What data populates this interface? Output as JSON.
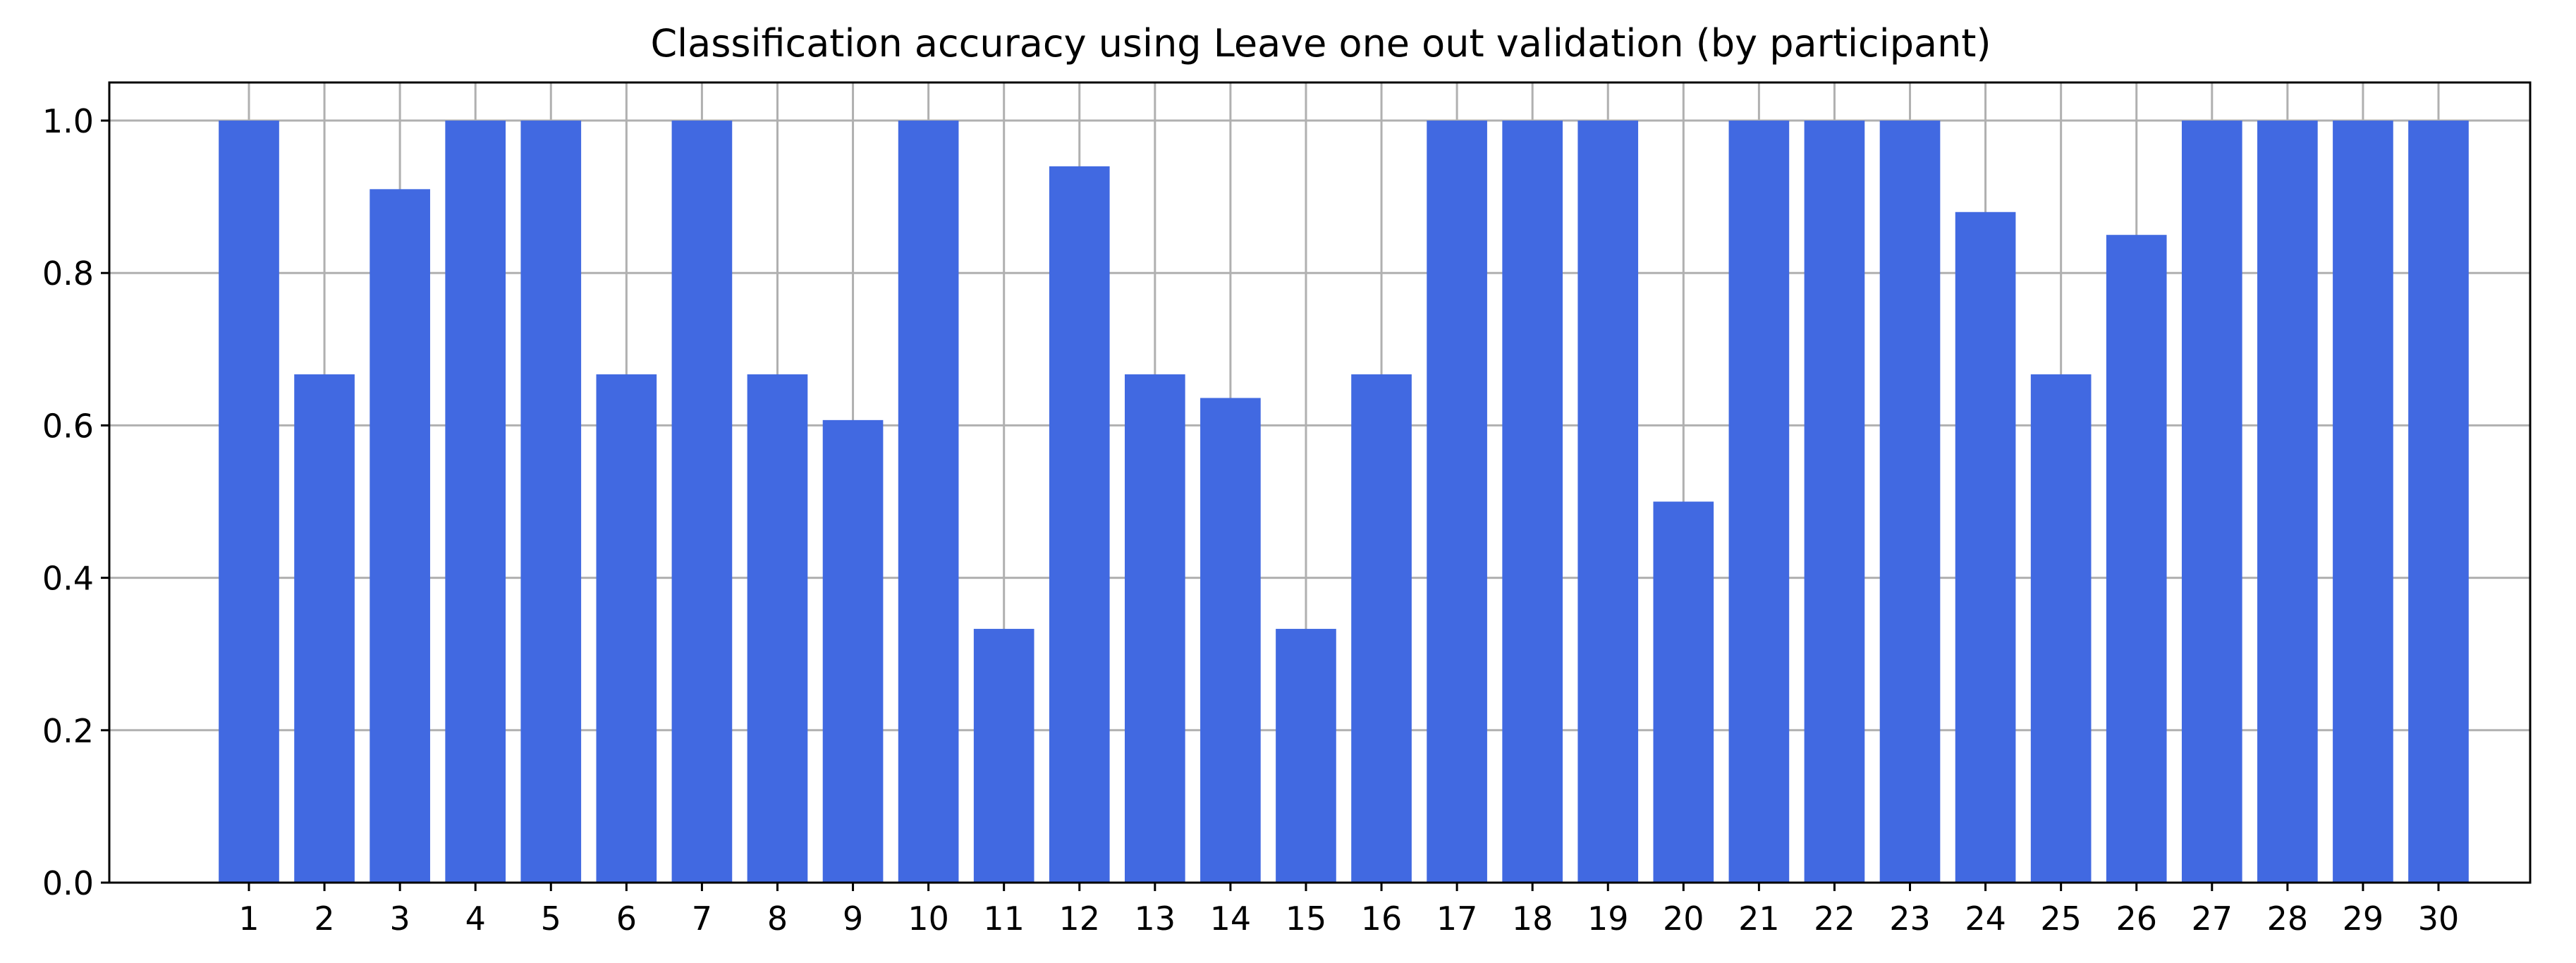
{
  "chart_data": {
    "type": "bar",
    "title": "Classification accuracy using Leave one out validation (by participant)",
    "xlabel": "",
    "ylabel": "",
    "categories": [
      "1",
      "2",
      "3",
      "4",
      "5",
      "6",
      "7",
      "8",
      "9",
      "10",
      "11",
      "12",
      "13",
      "14",
      "15",
      "16",
      "17",
      "18",
      "19",
      "20",
      "21",
      "22",
      "23",
      "24",
      "25",
      "26",
      "27",
      "28",
      "29",
      "30"
    ],
    "values": [
      1.0,
      0.667,
      0.91,
      1.0,
      1.0,
      0.667,
      1.0,
      0.667,
      0.607,
      1.0,
      0.333,
      0.94,
      0.667,
      0.636,
      0.333,
      0.667,
      1.0,
      1.0,
      1.0,
      0.5,
      1.0,
      1.0,
      1.0,
      0.88,
      0.667,
      0.85,
      1.0,
      1.0,
      1.0,
      1.0
    ],
    "ylim": [
      0.0,
      1.05
    ],
    "yticks": [
      "0.0",
      "0.2",
      "0.4",
      "0.6",
      "0.8",
      "1.0"
    ],
    "ytick_values": [
      0.0,
      0.2,
      0.4,
      0.6,
      0.8,
      1.0
    ],
    "grid": true,
    "bar_color": "#4169e1"
  }
}
